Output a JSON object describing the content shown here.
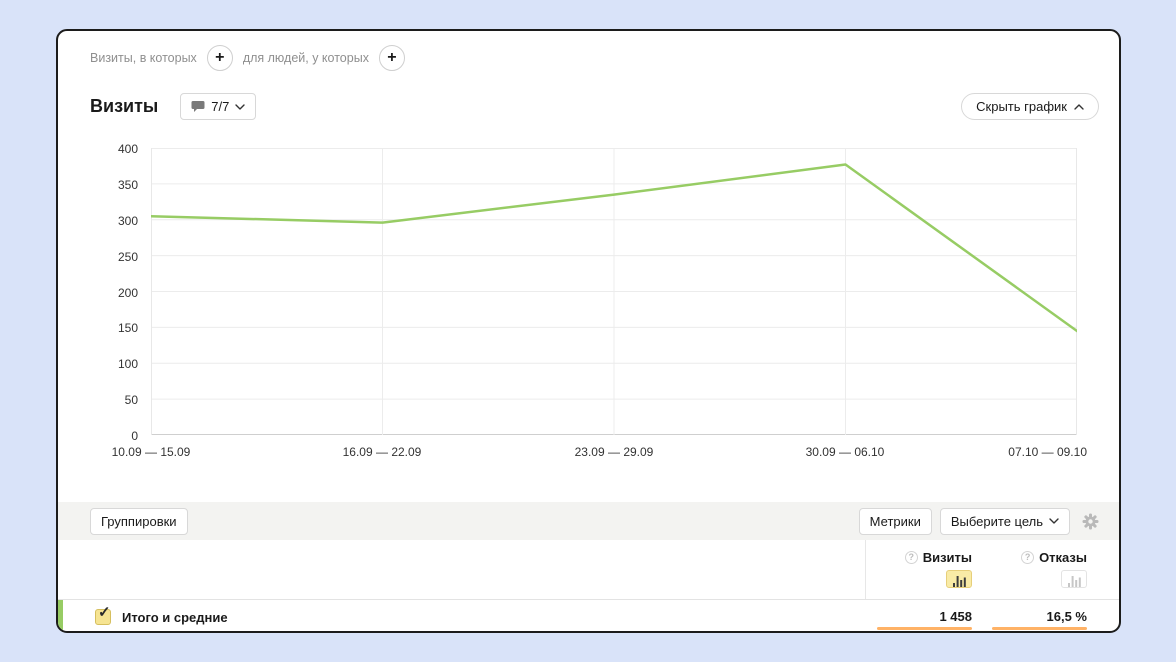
{
  "filters": {
    "visits_condition_label": "Визиты, в которых",
    "people_condition_label": "для людей, у которых",
    "add_icon": "+"
  },
  "header": {
    "title": "Визиты",
    "segments_badge": "7/7",
    "hide_chart_label": "Скрыть график"
  },
  "chart_data": {
    "type": "line",
    "title": "Визиты",
    "categories": [
      "10.09 — 15.09",
      "16.09 — 22.09",
      "23.09 — 29.09",
      "30.09 — 06.10",
      "07.10 — 09.10"
    ],
    "values": [
      305,
      296,
      335,
      377,
      145
    ],
    "series": [
      {
        "name": "Визиты",
        "values": [
          305,
          296,
          335,
          377,
          145
        ]
      }
    ],
    "xlabel": "",
    "ylabel": "",
    "ylim": [
      0,
      400
    ],
    "ytick_step": 50,
    "ytick_labels": [
      "400",
      "350",
      "300",
      "250",
      "200",
      "150",
      "100",
      "50",
      "0"
    ],
    "grid": true,
    "legend_position": "none",
    "line_color": "#97cc64"
  },
  "toolbar": {
    "groupings_label": "Группировки",
    "metrics_label": "Метрики",
    "goal_select_label": "Выберите цель",
    "gear_icon": "settings-icon"
  },
  "table": {
    "help_icon": "?",
    "columns": [
      {
        "label": "Визиты",
        "value": "1 458",
        "chart_toggle": "selected"
      },
      {
        "label": "Отказы",
        "value": "16,5 %",
        "chart_toggle": "unselected"
      }
    ],
    "total_row": {
      "label": "Итого и средние",
      "checked": true,
      "check_icon": "✓"
    }
  },
  "colors": {
    "page_background": "#d9e3f9",
    "card_border": "#1c1c1c",
    "accent_green": "#97cc64",
    "metric_bar_orange": "#ffb266",
    "selected_metric_yellow": "#f9eba6",
    "toolbar_band_gray": "#f3f3f1"
  }
}
